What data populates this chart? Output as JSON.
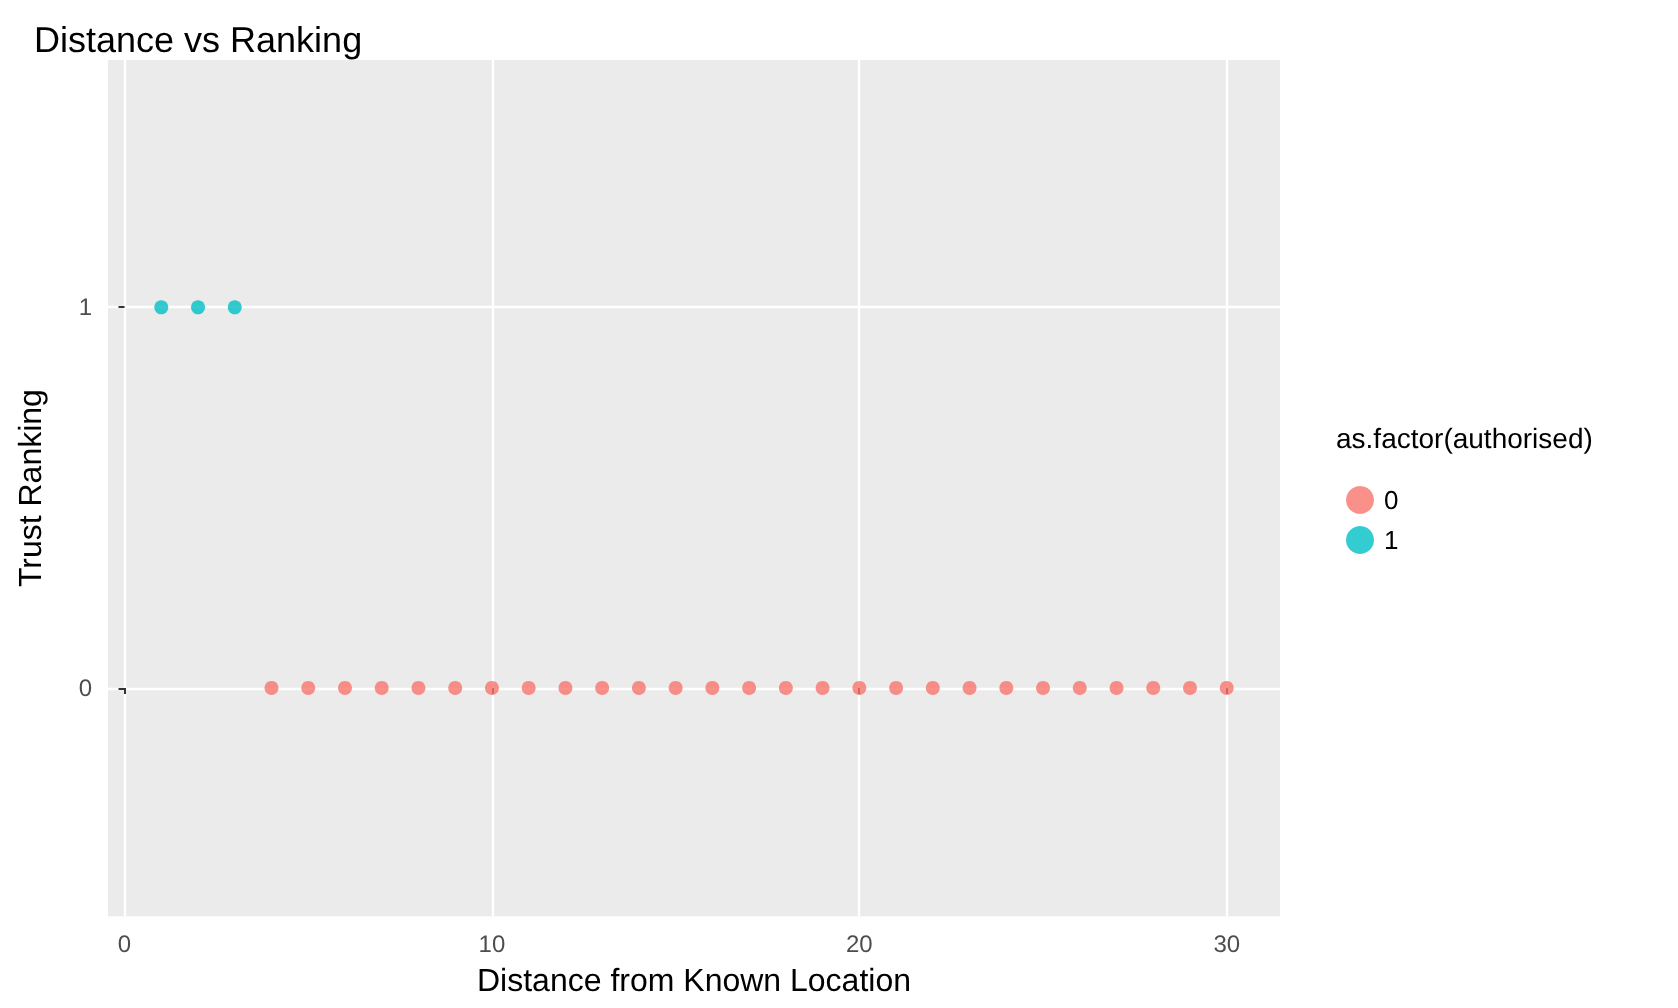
{
  "chart_data": {
    "type": "scatter",
    "title": "Distance vs Ranking",
    "xlabel": "Distance from Known Location",
    "ylabel": "Trust Ranking",
    "legend_title": "as.factor(authorised)",
    "series": [
      {
        "name": "0",
        "color": "#f8766d",
        "x": [
          4,
          5,
          6,
          7,
          8,
          9,
          10,
          11,
          12,
          13,
          14,
          15,
          16,
          17,
          18,
          19,
          20,
          21,
          22,
          23,
          24,
          25,
          26,
          27,
          28,
          29,
          30
        ],
        "values": [
          0,
          0,
          0,
          0,
          0,
          0,
          0,
          0,
          0,
          0,
          0,
          0,
          0,
          0,
          0,
          0,
          0,
          0,
          0,
          0,
          0,
          0,
          0,
          0,
          0,
          0,
          0
        ]
      },
      {
        "name": "1",
        "color": "#00bfc4",
        "x": [
          1,
          2,
          3
        ],
        "values": [
          1,
          1,
          1
        ]
      }
    ],
    "xlim": [
      -0.45,
      31.45
    ],
    "xticks": [
      0,
      10,
      20,
      30
    ],
    "ylim": [
      -0.6,
      1.65
    ],
    "yticks": [
      0,
      1
    ],
    "grid": true,
    "legend": "right",
    "marker": "circle"
  }
}
